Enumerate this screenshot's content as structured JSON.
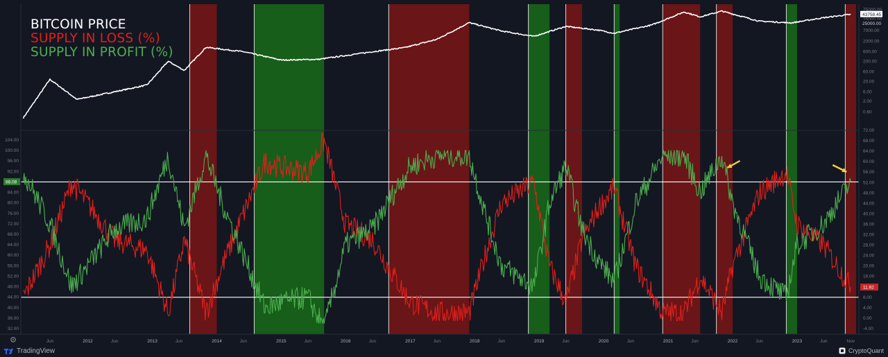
{
  "legend": {
    "title": "BITCOIN PRICE",
    "loss": "SUPPLY IN LOSS (%)",
    "profit": "SUPPLY IN PROFIT (%)",
    "title_color": "#ffffff",
    "loss_color": "#e0201b",
    "profit_color": "#4caf50"
  },
  "footer": {
    "left_brand": "TradingView",
    "right_brand": "CryptoQuant"
  },
  "price_axis": {
    "ticks": [
      "75000.00",
      "25000.00",
      "7000.00",
      "2000.00",
      "600.00",
      "200.00",
      "60.00",
      "20.00",
      "6.00",
      "2.00",
      "0.60"
    ],
    "current_labels": [
      "25000.00",
      "43758.45"
    ]
  },
  "right_axis": {
    "ticks": [
      "72.00",
      "68.00",
      "64.00",
      "60.00",
      "56.00",
      "52.00",
      "48.00",
      "44.00",
      "40.00",
      "36.00",
      "32.00",
      "28.00",
      "24.00",
      "20.00",
      "16.00",
      "12.00",
      "8.00",
      "4.00",
      "0.00",
      "-4.00"
    ],
    "current_label": "11.92"
  },
  "left_axis": {
    "ticks": [
      "104.00",
      "100.00",
      "96.00",
      "92.00",
      "88.00",
      "84.00",
      "80.00",
      "76.00",
      "72.00",
      "68.00",
      "64.00",
      "60.00",
      "56.00",
      "52.00",
      "48.00",
      "44.00",
      "40.00",
      "36.00",
      "32.00"
    ],
    "current_label": "88.08"
  },
  "time_axis": {
    "labels": [
      "Jun",
      "2012",
      "Jun",
      "2013",
      "Jun",
      "2014",
      "Jun",
      "2015",
      "Jun",
      "2016",
      "Jun",
      "2017",
      "Jun",
      "2018",
      "Jun",
      "2019",
      "Jun",
      "2020",
      "Jun",
      "2021",
      "Jun",
      "2022",
      "Jun",
      "2023",
      "Jun",
      "Nov"
    ]
  },
  "chart_data": {
    "type": "line",
    "series": [
      {
        "name": "BITCOIN PRICE",
        "color": "#ffffff",
        "scale": "log",
        "x": [
          "2011-01",
          "2011-06",
          "2011-11",
          "2012-06",
          "2012-12",
          "2013-04",
          "2013-07",
          "2013-11",
          "2014-06",
          "2015-01",
          "2015-08",
          "2016-06",
          "2016-12",
          "2017-06",
          "2017-12",
          "2018-06",
          "2018-12",
          "2019-06",
          "2019-12",
          "2020-03",
          "2020-10",
          "2021-04",
          "2021-07",
          "2021-11",
          "2022-06",
          "2022-12",
          "2023-06",
          "2023-11"
        ],
        "values": [
          0.3,
          25,
          2.5,
          6,
          13,
          200,
          70,
          1000,
          600,
          230,
          250,
          600,
          960,
          2500,
          17000,
          6500,
          3500,
          11000,
          7200,
          5000,
          13000,
          58000,
          33000,
          64000,
          20000,
          16500,
          30000,
          43758.45
        ]
      },
      {
        "name": "SUPPLY IN LOSS (%)",
        "color": "#e0201b",
        "axis": "right",
        "x": [
          "2011-01",
          "2011-06",
          "2011-10",
          "2012-01",
          "2012-06",
          "2012-12",
          "2013-04",
          "2013-07",
          "2013-11",
          "2014-02",
          "2014-06",
          "2014-10",
          "2015-01",
          "2015-06",
          "2015-09",
          "2016-01",
          "2016-06",
          "2016-10",
          "2017-01",
          "2017-06",
          "2017-12",
          "2018-03",
          "2018-06",
          "2018-12",
          "2019-03",
          "2019-06",
          "2019-09",
          "2019-12",
          "2020-03",
          "2020-07",
          "2020-12",
          "2021-04",
          "2021-07",
          "2021-11",
          "2022-01",
          "2022-06",
          "2022-11",
          "2023-01",
          "2023-06",
          "2023-11"
        ],
        "values": [
          8,
          28,
          52,
          44,
          30,
          26,
          2,
          30,
          2,
          20,
          40,
          60,
          58,
          56,
          68,
          36,
          30,
          16,
          6,
          2,
          2,
          24,
          44,
          52,
          20,
          6,
          30,
          42,
          50,
          20,
          2,
          2,
          16,
          2,
          20,
          48,
          56,
          36,
          28,
          11.92
        ]
      },
      {
        "name": "SUPPLY IN PROFIT (%)",
        "color": "#4caf50",
        "axis": "left",
        "x": [
          "2011-01",
          "2011-06",
          "2011-10",
          "2012-01",
          "2012-06",
          "2012-12",
          "2013-04",
          "2013-07",
          "2013-11",
          "2014-02",
          "2014-06",
          "2014-10",
          "2015-01",
          "2015-06",
          "2015-09",
          "2016-01",
          "2016-06",
          "2016-10",
          "2017-01",
          "2017-06",
          "2017-12",
          "2018-03",
          "2018-06",
          "2018-12",
          "2019-03",
          "2019-06",
          "2019-09",
          "2019-12",
          "2020-03",
          "2020-07",
          "2020-12",
          "2021-04",
          "2021-07",
          "2021-11",
          "2022-01",
          "2022-06",
          "2022-11",
          "2023-01",
          "2023-06",
          "2023-11"
        ],
        "values": [
          92,
          72,
          48,
          56,
          70,
          74,
          98,
          70,
          98,
          80,
          60,
          40,
          42,
          44,
          32,
          64,
          70,
          84,
          94,
          98,
          98,
          76,
          56,
          48,
          80,
          94,
          70,
          58,
          50,
          80,
          98,
          98,
          84,
          98,
          80,
          52,
          44,
          64,
          72,
          88.08
        ]
      }
    ],
    "shaded_regions": [
      {
        "start": "2013-08",
        "end": "2014-01",
        "color": "#7a1515"
      },
      {
        "start": "2014-08",
        "end": "2015-09",
        "color": "#176b17"
      },
      {
        "start": "2016-09",
        "end": "2017-12",
        "color": "#7a1515"
      },
      {
        "start": "2018-11",
        "end": "2019-03",
        "color": "#176b17"
      },
      {
        "start": "2019-06",
        "end": "2019-09",
        "color": "#7a1515"
      },
      {
        "start": "2020-03",
        "end": "2020-04",
        "color": "#176b17"
      },
      {
        "start": "2020-12",
        "end": "2021-07",
        "color": "#7a1515"
      },
      {
        "start": "2021-10",
        "end": "2022-01",
        "color": "#7a1515"
      },
      {
        "start": "2022-11",
        "end": "2023-01",
        "color": "#176b17"
      },
      {
        "start": "2023-10",
        "end": "2023-12",
        "color": "#7a1515"
      }
    ],
    "horizontal_lines": [
      {
        "axis": "left",
        "value": 88
      },
      {
        "axis": "right",
        "value": 8
      }
    ],
    "annotations": [
      {
        "type": "arrow",
        "color": "#f5d23a",
        "at": "2021-11"
      },
      {
        "type": "arrow",
        "color": "#f5d23a",
        "at": "2023-11"
      }
    ],
    "grid": false,
    "legend_position": "top-left"
  }
}
